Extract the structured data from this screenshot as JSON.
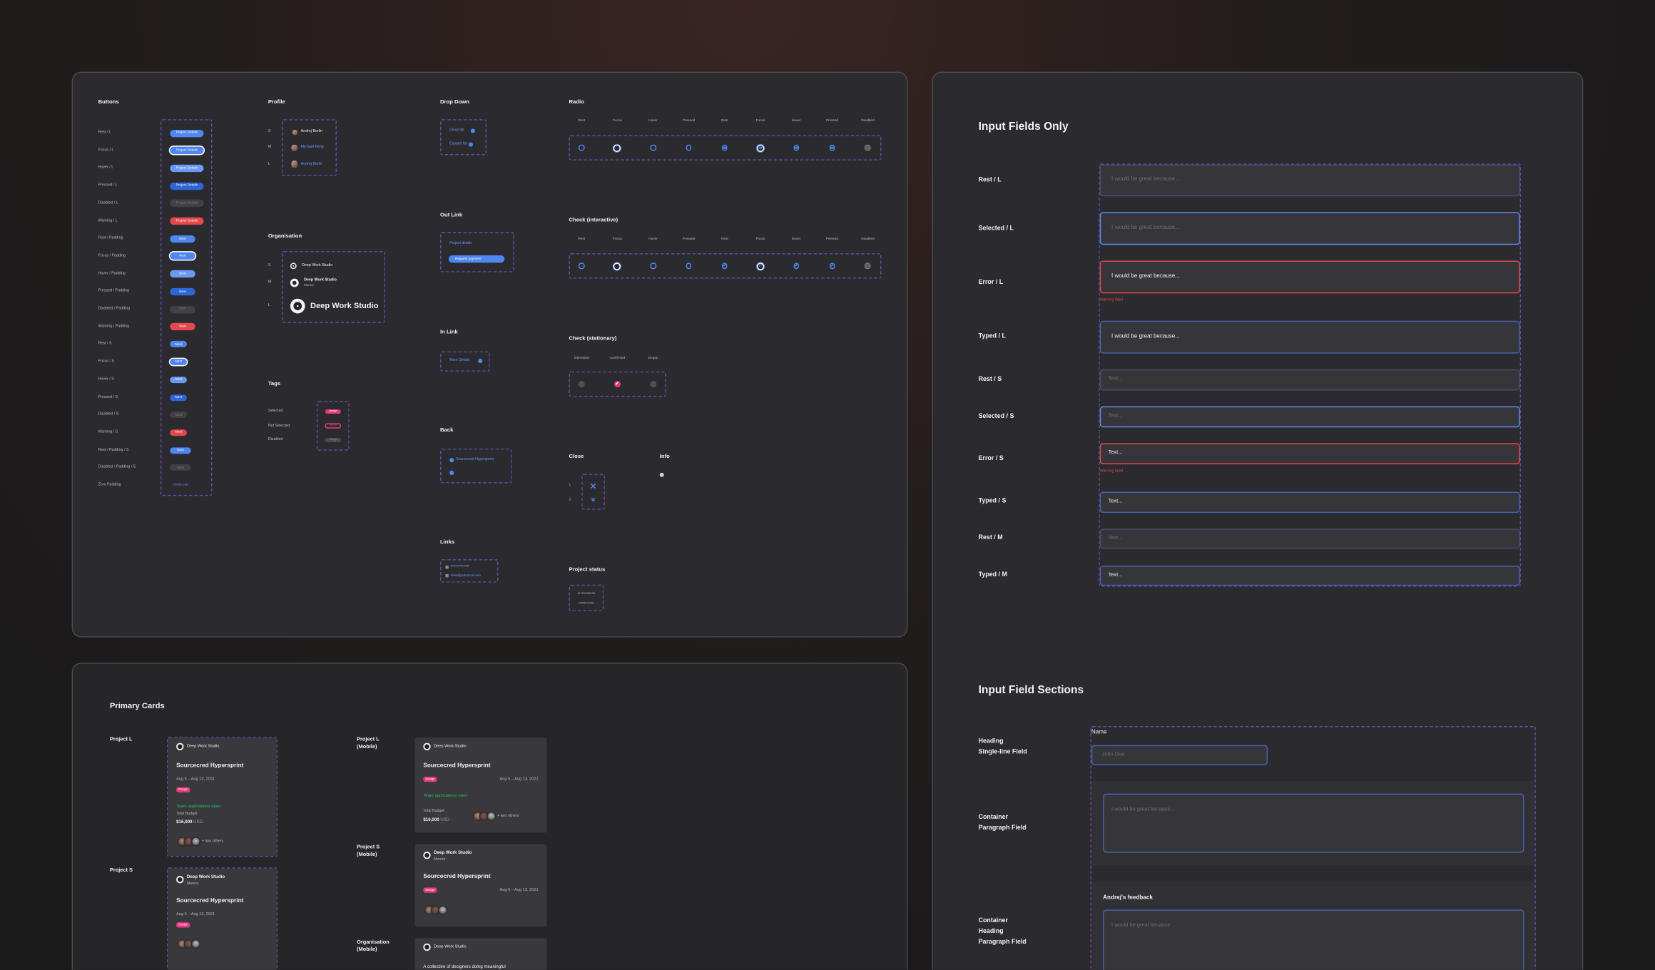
{
  "components_panel": {
    "buttons": {
      "title": "Buttons",
      "rows": [
        {
          "label": "Rest / L",
          "button": "Project Details"
        },
        {
          "label": "Focus / L",
          "button": "Project Details"
        },
        {
          "label": "Hover / L",
          "button": "Project Details"
        },
        {
          "label": "Pressed / L",
          "button": "Project Details"
        },
        {
          "label": "Disabled / L",
          "button": "Project Details"
        },
        {
          "label": "Warning / L",
          "button": "Project Details"
        },
        {
          "label": "Rest / Padding",
          "button": "Next"
        },
        {
          "label": "Focus / Padding",
          "button": "Next"
        },
        {
          "label": "Hover / Padding",
          "button": "Next"
        },
        {
          "label": "Pressed / Padding",
          "button": "Next"
        },
        {
          "label": "Disabled / Padding",
          "button": "Next"
        },
        {
          "label": "Warning / Padding",
          "button": "Next"
        },
        {
          "label": "Rest / S",
          "button": "Next"
        },
        {
          "label": "Focus / S",
          "button": "Next"
        },
        {
          "label": "Hover / S",
          "button": "Next"
        },
        {
          "label": "Pressed / S",
          "button": "Next"
        },
        {
          "label": "Disabled / S",
          "button": "Next"
        },
        {
          "label": "Warning / S",
          "button": "Next"
        },
        {
          "label": "Rest / Padding / S",
          "button": "Next"
        },
        {
          "label": "Disabled / Padding / S",
          "button": "Next"
        },
        {
          "label": "Zero Padding",
          "button": "Close List"
        }
      ]
    },
    "profile": {
      "title": "Profile",
      "rows": [
        {
          "size": "S",
          "name": "Andrej Berlin"
        },
        {
          "size": "M",
          "name": "Michael Feng"
        },
        {
          "size": "L",
          "name": "Andrej Berlin"
        }
      ]
    },
    "organisation": {
      "title": "Organisation",
      "rows": [
        {
          "size": "S",
          "name": "Deep Work Studio"
        },
        {
          "size": "M",
          "name": "Deep Work Studio",
          "role": "Mentor"
        },
        {
          "size": "L",
          "name": "Deep Work Studio"
        }
      ]
    },
    "tags": {
      "title": "Tags",
      "rows": [
        {
          "label": "Selected",
          "tag": "Design"
        },
        {
          "label": "Not Selected",
          "tag": "Design"
        },
        {
          "label": "Disabled",
          "tag": "Design"
        }
      ]
    },
    "drop_down": {
      "title": "Drop Down",
      "items": [
        "Close list",
        "Expand list"
      ]
    },
    "out_link": {
      "title": "Out Link",
      "link": "Project details",
      "button": "Request payment"
    },
    "in_link": {
      "title": "In Link",
      "link": "More Details"
    },
    "back": {
      "title": "Back",
      "link": "Sourcecred Hypersprint"
    },
    "links": {
      "title": "Links",
      "items": [
        "dw.com/rental",
        "olivia@protonmail.com"
      ]
    },
    "radio": {
      "title": "Radio",
      "states": [
        "Rest",
        "Focus",
        "Hover",
        "Pressed",
        "Rest",
        "Focus",
        "Hover",
        "Pressed",
        "Disabled"
      ]
    },
    "check_interactive": {
      "title": "Check (interactive)",
      "states": [
        "Rest",
        "Focus",
        "Hover",
        "Pressed",
        "Rest",
        "Focus",
        "Hover",
        "Pressed",
        "Disabled"
      ]
    },
    "check_stationary": {
      "title": "Check (stationary)",
      "states": [
        "Interested",
        "Confirmed",
        "Empty"
      ]
    },
    "close": {
      "title": "Close",
      "sizes": [
        "L",
        "S"
      ]
    },
    "info": {
      "title": "Info"
    },
    "project_status": {
      "title": "Project status",
      "items": [
        "IN PROGRESS",
        "COMPLETED"
      ]
    }
  },
  "cards_panel": {
    "title": "Primary Cards",
    "cards": [
      {
        "label": [
          "Project L"
        ],
        "org": "Deep Work Studio",
        "title": "Sourcecred Hypersprint",
        "dates": "Aug 5 – Aug 13, 2021",
        "tag": "Design",
        "status": "Team applications open",
        "budget_label": "Total Budget",
        "budget": "$16,000",
        "currency": "USD",
        "others": "+ two others"
      },
      {
        "label": [
          "Project S"
        ],
        "org": "Deep Work Studio",
        "role": "Mentor",
        "title": "Sourcecred Hypersprint",
        "dates": "Aug 5 – Aug 13, 2021",
        "tag": "Design"
      },
      {
        "label": [
          "Project L",
          "(Mobile)"
        ],
        "org": "Deep Work Studio",
        "title": "Sourcecred Hypersprint",
        "dates": "Aug 5 – Aug 13, 2021",
        "tag": "Design",
        "status": "Team applications open",
        "budget_label": "Total Budget",
        "budget": "$16,000",
        "currency": "USD",
        "others": "+ two others"
      },
      {
        "label": [
          "Project S",
          "(Mobile)"
        ],
        "org": "Deep Work Studio",
        "role": "Mentor",
        "title": "Sourcecred Hypersprint",
        "dates": "Aug 5 – Aug 13, 2021",
        "tag": "Design"
      },
      {
        "label": [
          "Organisation",
          "(Mobile)"
        ],
        "org": "Deep Work Studio",
        "description": "A collective of designers doing meaningful"
      }
    ]
  },
  "inputs_panel": {
    "title": "Input Fields Only",
    "fields": [
      {
        "label": "Rest / L",
        "text": "I would be great because..."
      },
      {
        "label": "Selected / L",
        "text": "I would be great because..."
      },
      {
        "label": "Error / L",
        "text": "I would be great because...",
        "warning": "Warning label"
      },
      {
        "label": "Typed / L",
        "text": "I would be great because..."
      },
      {
        "label": "Rest / S",
        "text": "Text..."
      },
      {
        "label": "Selected / S",
        "text": "Text..."
      },
      {
        "label": "Error / S",
        "text": "Text...",
        "warning": "Warning label"
      },
      {
        "label": "Typed / S",
        "text": "Text..."
      },
      {
        "label": "Rest / M",
        "text": "Text..."
      },
      {
        "label": "Typed / M",
        "text": "Text..."
      }
    ],
    "sections_title": "Input Field Sections",
    "sections": [
      {
        "label": [
          "Heading",
          "Single-line Field"
        ],
        "heading": "Name",
        "text": "John Doe"
      },
      {
        "label": [
          "Container",
          "Paragraph Field"
        ],
        "text": "I would be great because..."
      },
      {
        "label": [
          "Container",
          "Heading",
          "Paragraph Field"
        ],
        "heading": "Andrej's feedback",
        "text": "I would be great because..."
      }
    ]
  }
}
